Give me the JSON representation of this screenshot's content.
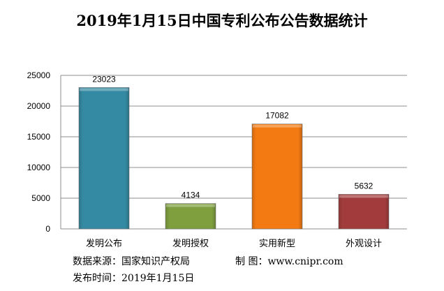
{
  "chart_data": {
    "type": "bar",
    "title": "2019年1月15日中国专利公布公告数据统计",
    "categories": [
      "发明公布",
      "发明授权",
      "实用新型",
      "外观设计"
    ],
    "values": [
      23023,
      4134,
      17082,
      5632
    ],
    "colors": [
      "#358aa3",
      "#7f9f3f",
      "#f37a12",
      "#a23c3c"
    ],
    "ylim": [
      0,
      25000
    ],
    "yticks": [
      0,
      5000,
      10000,
      15000,
      20000,
      25000
    ],
    "grid": true,
    "xlabel": "",
    "ylabel": ""
  },
  "footer": {
    "source_label": "数据来源：国家知识产权局",
    "maker_label": "制 图：www.cnipr.com",
    "date_label": "发布时间：2019年1月15日"
  }
}
